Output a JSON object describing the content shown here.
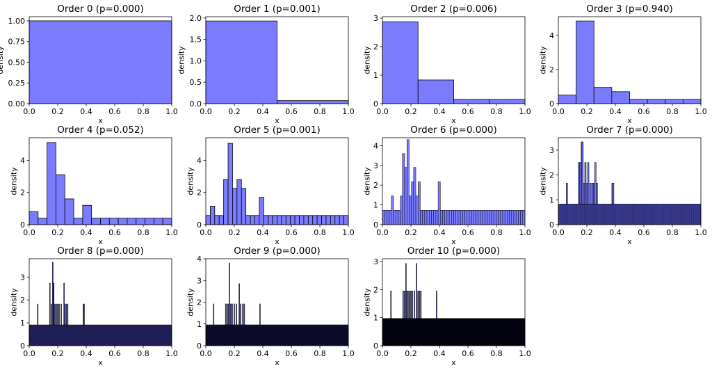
{
  "figure": {
    "bar_color": "#7b7bff",
    "edge_color": "#000000"
  },
  "chart_data": [
    {
      "type": "bar",
      "title": "Order 0 (p=0.000)",
      "xlabel": "x",
      "ylabel": "density",
      "xlim": [
        0,
        1
      ],
      "ylim": [
        0,
        1.05
      ],
      "xticks": [
        "0.0",
        "0.2",
        "0.4",
        "0.6",
        "0.8",
        "1.0"
      ],
      "yticks": [
        "0.00",
        "0.25",
        "0.50",
        "0.75",
        "1.00"
      ],
      "bins": 1,
      "values": [
        1.0
      ],
      "spikes": []
    },
    {
      "type": "bar",
      "title": "Order 1 (p=0.001)",
      "xlabel": "x",
      "ylabel": "density",
      "xlim": [
        0,
        1
      ],
      "ylim": [
        0,
        2.03
      ],
      "xticks": [
        "0.0",
        "0.2",
        "0.4",
        "0.6",
        "0.8",
        "1.0"
      ],
      "yticks": [
        "0.0",
        "0.5",
        "1.0",
        "1.5",
        "2.0"
      ],
      "bins": 2,
      "values": [
        1.93,
        0.07
      ],
      "spikes": []
    },
    {
      "type": "bar",
      "title": "Order 2 (p=0.006)",
      "xlabel": "x",
      "ylabel": "density",
      "xlim": [
        0,
        1
      ],
      "ylim": [
        0,
        3.05
      ],
      "xticks": [
        "0.0",
        "0.2",
        "0.4",
        "0.6",
        "0.8",
        "1.0"
      ],
      "yticks": [
        "0",
        "1",
        "2",
        "3"
      ],
      "bins": 4,
      "values": [
        2.87,
        0.83,
        0.15,
        0.15
      ],
      "spikes": []
    },
    {
      "type": "bar",
      "title": "Order 3 (p=0.940)",
      "xlabel": "x",
      "ylabel": "density",
      "xlim": [
        0,
        1
      ],
      "ylim": [
        0,
        5.1
      ],
      "xticks": [
        "0.0",
        "0.2",
        "0.4",
        "0.6",
        "0.8",
        "1.0"
      ],
      "yticks": [
        "0",
        "2",
        "4"
      ],
      "bins": 8,
      "values": [
        0.5,
        4.85,
        0.95,
        0.7,
        0.25,
        0.25,
        0.25,
        0.25
      ],
      "spikes": []
    },
    {
      "type": "bar",
      "title": "Order 4 (p=0.052)",
      "xlabel": "x",
      "ylabel": "density",
      "xlim": [
        0,
        1
      ],
      "ylim": [
        0,
        5.4
      ],
      "xticks": [
        "0.0",
        "0.2",
        "0.4",
        "0.6",
        "0.8",
        "1.0"
      ],
      "yticks": [
        "0",
        "2",
        "4"
      ],
      "bins": 16,
      "values": [
        0.8,
        0.4,
        5.1,
        3.1,
        1.6,
        0.4,
        1.2,
        0.4,
        0.4,
        0.4,
        0.4,
        0.4,
        0.4,
        0.4,
        0.4,
        0.4
      ],
      "spikes": []
    },
    {
      "type": "bar",
      "title": "Order 5 (p=0.001)",
      "xlabel": "x",
      "ylabel": "density",
      "xlim": [
        0,
        1
      ],
      "ylim": [
        0,
        5.4
      ],
      "xticks": [
        "0.0",
        "0.2",
        "0.4",
        "0.6",
        "0.8",
        "1.0"
      ],
      "yticks": [
        "0",
        "2",
        "4"
      ],
      "bins": 32,
      "base": 0.57,
      "overrides": [
        [
          1,
          1.15
        ],
        [
          4,
          2.8
        ],
        [
          5,
          5.05
        ],
        [
          6,
          2.25
        ],
        [
          7,
          2.8
        ],
        [
          8,
          2.25
        ],
        [
          12,
          1.7
        ]
      ],
      "spikes": []
    },
    {
      "type": "bar",
      "title": "Order 6 (p=0.000)",
      "xlabel": "x",
      "ylabel": "density",
      "xlim": [
        0,
        1
      ],
      "ylim": [
        0,
        4.4
      ],
      "xticks": [
        "0.0",
        "0.2",
        "0.4",
        "0.6",
        "0.8",
        "1.0"
      ],
      "yticks": [
        "0",
        "1",
        "2",
        "3",
        "4"
      ],
      "bins": 64,
      "base": 0.73,
      "overrides": [
        [
          4,
          1.45
        ],
        [
          8,
          1.45
        ],
        [
          9,
          3.6
        ],
        [
          10,
          2.9
        ],
        [
          11,
          4.3
        ],
        [
          12,
          1.45
        ],
        [
          13,
          2.17
        ],
        [
          14,
          2.9
        ],
        [
          15,
          1.45
        ],
        [
          16,
          2.17
        ],
        [
          17,
          0.73
        ],
        [
          25,
          2.17
        ]
      ],
      "spikes": []
    },
    {
      "type": "bar",
      "title": "Order 7 (p=0.000)",
      "xlabel": "x",
      "ylabel": "density",
      "xlim": [
        0,
        1
      ],
      "ylim": [
        0,
        3.5
      ],
      "xticks": [
        "0.0",
        "0.2",
        "0.4",
        "0.6",
        "0.8",
        "1.0"
      ],
      "yticks": [
        "0",
        "1",
        "2",
        "3"
      ],
      "bins": 128,
      "base": 0.83,
      "dense": true,
      "spikes": [
        [
          0.06,
          1.67
        ],
        [
          0.145,
          2.5
        ],
        [
          0.155,
          2.5
        ],
        [
          0.165,
          3.33
        ],
        [
          0.17,
          3.33
        ],
        [
          0.18,
          1.67
        ],
        [
          0.19,
          2.5
        ],
        [
          0.2,
          1.67
        ],
        [
          0.21,
          2.5
        ],
        [
          0.225,
          1.67
        ],
        [
          0.24,
          1.67
        ],
        [
          0.25,
          1.67
        ],
        [
          0.26,
          2.5
        ],
        [
          0.27,
          1.67
        ],
        [
          0.38,
          1.67
        ],
        [
          0.385,
          1.67
        ]
      ]
    },
    {
      "type": "bar",
      "title": "Order 8 (p=0.000)",
      "xlabel": "x",
      "ylabel": "density",
      "xlim": [
        0,
        1
      ],
      "ylim": [
        0,
        3.8
      ],
      "xticks": [
        "0.0",
        "0.2",
        "0.4",
        "0.6",
        "0.8",
        "1.0"
      ],
      "yticks": [
        "0",
        "1",
        "2",
        "3"
      ],
      "bins": 256,
      "base": 0.91,
      "dense": true,
      "spikes": [
        [
          0.06,
          1.82
        ],
        [
          0.145,
          2.73
        ],
        [
          0.155,
          1.82
        ],
        [
          0.165,
          3.64
        ],
        [
          0.172,
          2.73
        ],
        [
          0.18,
          1.82
        ],
        [
          0.19,
          1.82
        ],
        [
          0.2,
          1.82
        ],
        [
          0.21,
          1.82
        ],
        [
          0.225,
          1.82
        ],
        [
          0.245,
          2.73
        ],
        [
          0.25,
          1.82
        ],
        [
          0.26,
          1.82
        ],
        [
          0.27,
          1.82
        ],
        [
          0.38,
          1.82
        ],
        [
          0.385,
          1.82
        ]
      ]
    },
    {
      "type": "bar",
      "title": "Order 9 (p=0.000)",
      "xlabel": "x",
      "ylabel": "density",
      "xlim": [
        0,
        1
      ],
      "ylim": [
        0,
        4.0
      ],
      "xticks": [
        "0.0",
        "0.2",
        "0.4",
        "0.6",
        "0.8",
        "1.0"
      ],
      "yticks": [
        "0",
        "1",
        "2",
        "3",
        "4"
      ],
      "bins": 512,
      "base": 0.96,
      "dense": true,
      "spikes": [
        [
          0.055,
          1.92
        ],
        [
          0.14,
          1.92
        ],
        [
          0.15,
          1.92
        ],
        [
          0.16,
          1.92
        ],
        [
          0.165,
          3.8
        ],
        [
          0.175,
          1.92
        ],
        [
          0.185,
          1.92
        ],
        [
          0.2,
          1.92
        ],
        [
          0.215,
          1.92
        ],
        [
          0.235,
          2.85
        ],
        [
          0.245,
          1.92
        ],
        [
          0.26,
          1.92
        ],
        [
          0.27,
          1.92
        ],
        [
          0.38,
          1.92
        ]
      ]
    },
    {
      "type": "bar",
      "title": "Order 10 (p=0.000)",
      "xlabel": "x",
      "ylabel": "density",
      "xlim": [
        0,
        1
      ],
      "ylim": [
        0,
        3.1
      ],
      "xticks": [
        "0.0",
        "0.2",
        "0.4",
        "0.6",
        "0.8",
        "1.0"
      ],
      "yticks": [
        "0",
        "1",
        "2",
        "3"
      ],
      "bins": 1024,
      "base": 0.97,
      "dense": true,
      "spikes": [
        [
          0.06,
          1.95
        ],
        [
          0.145,
          1.95
        ],
        [
          0.155,
          1.95
        ],
        [
          0.165,
          2.93
        ],
        [
          0.17,
          1.95
        ],
        [
          0.18,
          1.95
        ],
        [
          0.19,
          1.95
        ],
        [
          0.2,
          1.95
        ],
        [
          0.21,
          1.95
        ],
        [
          0.225,
          1.95
        ],
        [
          0.24,
          2.93
        ],
        [
          0.25,
          1.95
        ],
        [
          0.26,
          1.95
        ],
        [
          0.27,
          1.95
        ],
        [
          0.38,
          1.95
        ]
      ]
    }
  ]
}
